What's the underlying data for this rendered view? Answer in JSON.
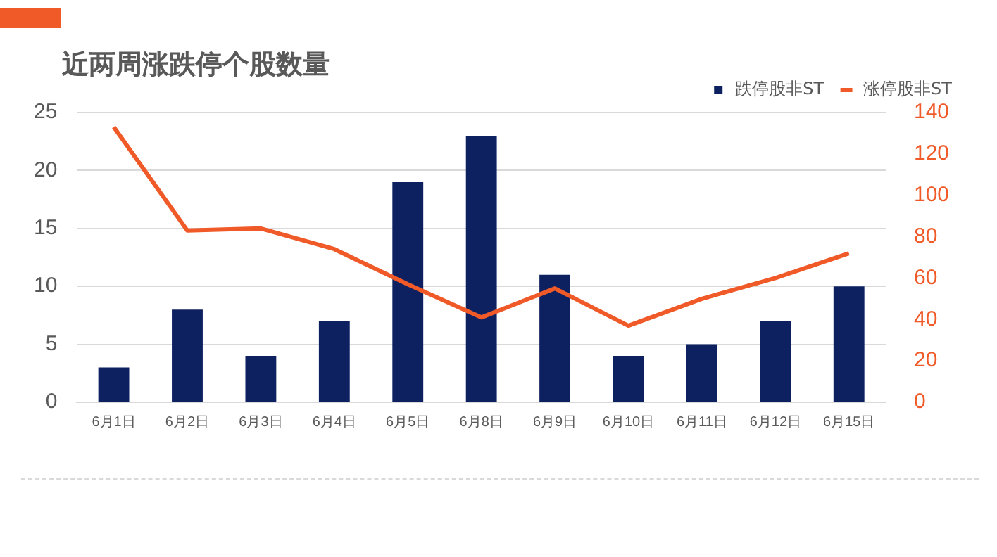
{
  "chart_data": {
    "type": "bar",
    "title": "近两周涨跌停个股数量",
    "categories": [
      "6月1日",
      "6月2日",
      "6月3日",
      "6月4日",
      "6月5日",
      "6月8日",
      "6月9日",
      "6月10日",
      "6月11日",
      "6月12日",
      "6月15日"
    ],
    "series": [
      {
        "name": "跌停股非ST",
        "color": "#0d2060",
        "values": [
          3,
          8,
          4,
          7,
          19,
          23,
          11,
          4,
          5,
          7,
          10
        ]
      },
      {
        "name": "涨停股非ST",
        "type": "line",
        "axis": "y2",
        "color": "#f05a28",
        "values": [
          133,
          83,
          84,
          74,
          57,
          41,
          55,
          37,
          50,
          60,
          72
        ]
      }
    ],
    "ylim": [
      0,
      25
    ],
    "yticks": [
      0,
      5,
      10,
      15,
      20,
      25
    ],
    "y2lim": [
      0,
      140
    ],
    "y2ticks": [
      0,
      20,
      40,
      60,
      80,
      100,
      120,
      140
    ],
    "grid": "y",
    "legend": "top right",
    "marker": "none",
    "line_style": "solid"
  }
}
